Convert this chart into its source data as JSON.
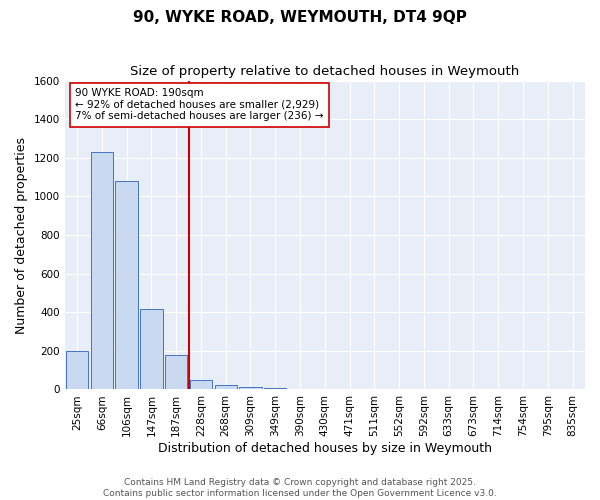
{
  "title": "90, WYKE ROAD, WEYMOUTH, DT4 9QP",
  "subtitle": "Size of property relative to detached houses in Weymouth",
  "xlabel": "Distribution of detached houses by size in Weymouth",
  "ylabel": "Number of detached properties",
  "bin_labels": [
    "25sqm",
    "66sqm",
    "106sqm",
    "147sqm",
    "187sqm",
    "228sqm",
    "268sqm",
    "309sqm",
    "349sqm",
    "390sqm",
    "430sqm",
    "471sqm",
    "511sqm",
    "552sqm",
    "592sqm",
    "633sqm",
    "673sqm",
    "714sqm",
    "754sqm",
    "795sqm",
    "835sqm"
  ],
  "bar_values": [
    200,
    1230,
    1080,
    415,
    180,
    50,
    25,
    15,
    8,
    0,
    0,
    0,
    0,
    0,
    0,
    0,
    0,
    0,
    0,
    0,
    0
  ],
  "bar_color": "#c9d9f0",
  "bar_edge_color": "#4472c4",
  "vline_color": "#cc0000",
  "annotation_text": "90 WYKE ROAD: 190sqm\n← 92% of detached houses are smaller (2,929)\n7% of semi-detached houses are larger (236) →",
  "annotation_box_color": "white",
  "annotation_box_edge": "#cc0000",
  "ylim": [
    0,
    1600
  ],
  "yticks": [
    0,
    200,
    400,
    600,
    800,
    1000,
    1200,
    1400,
    1600
  ],
  "background_color": "#e8eef8",
  "grid_color": "white",
  "footer_line1": "Contains HM Land Registry data © Crown copyright and database right 2025.",
  "footer_line2": "Contains public sector information licensed under the Open Government Licence v3.0.",
  "title_fontsize": 11,
  "subtitle_fontsize": 9.5,
  "axis_label_fontsize": 9,
  "tick_fontsize": 7.5,
  "annotation_fontsize": 7.5,
  "footer_fontsize": 6.5
}
